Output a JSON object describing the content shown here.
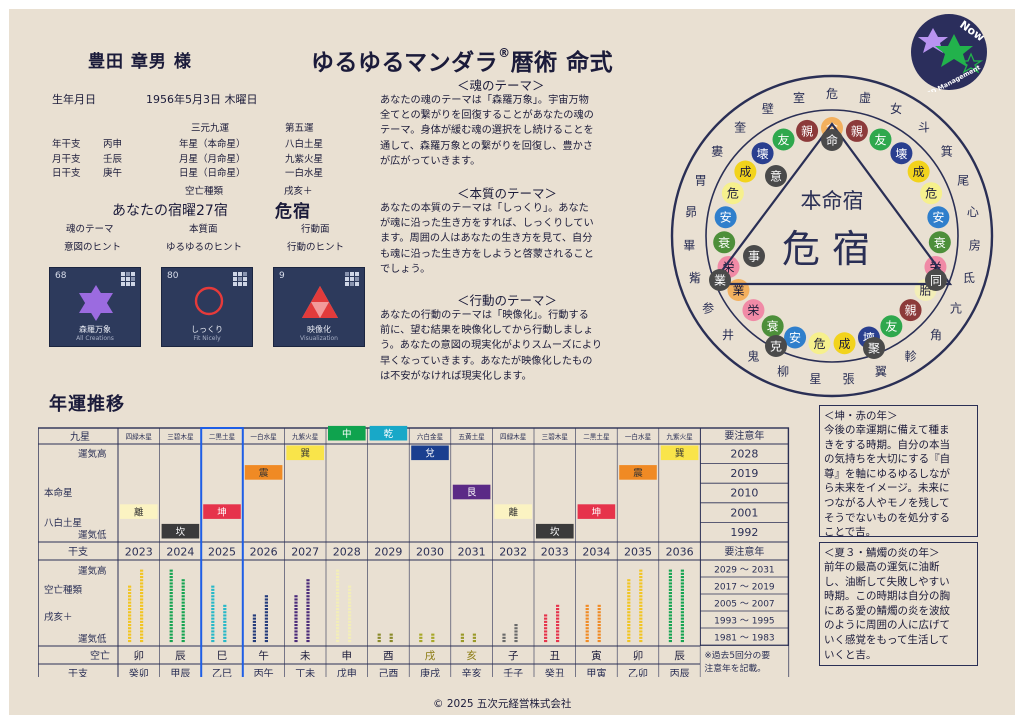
{
  "header": {
    "name": "豊田 章男 様",
    "title": "ゆるゆるマンダラ",
    "title_mark": "®",
    "title_suffix": "暦術 命式",
    "logo_text": "Now",
    "logo_sub": "5D Management"
  },
  "birth": {
    "label": "生年月日",
    "value": "1956年5月3日 木曜日"
  },
  "kanshi": {
    "rows": [
      {
        "label": "年干支",
        "value": "丙申",
        "kyusei": "年星（本命星）",
        "unsei": "八白土星"
      },
      {
        "label": "月干支",
        "value": "壬辰",
        "kyusei": "月星（月命星）",
        "unsei": "九紫火星"
      },
      {
        "label": "日干支",
        "value": "庚午",
        "kyusei": "日星（日命星）",
        "unsei": "一白水星"
      }
    ],
    "sangen_label": "三元九運",
    "daigo_label": "第五運"
  },
  "kubo": {
    "label": "空亡種類",
    "value": "戌亥＋"
  },
  "shuku": {
    "label": "あなたの宿曜27宿",
    "value": "危宿"
  },
  "themes_row": {
    "labels": [
      "魂のテーマ",
      "本質面",
      "行動面"
    ],
    "hints": [
      "意図のヒント",
      "ゆるゆるのヒント",
      "行動のヒント"
    ]
  },
  "cards": [
    {
      "num": "68",
      "name": "森羅万象",
      "en": "All Creations",
      "icon": "hexagram-icon"
    },
    {
      "num": "80",
      "name": "しっくり",
      "en": "Fit Nicely",
      "icon": "ring-icon"
    },
    {
      "num": "9",
      "name": "映像化",
      "en": "Visualization",
      "icon": "triforce-icon"
    }
  ],
  "themes": [
    {
      "heading": "＜魂のテーマ＞",
      "lines": [
        "あなたの魂のテーマは「森羅万象」。宇宙万物",
        "全てとの繋がりを回復することがあなたの魂の",
        "テーマ。身体が緩む魂の選択をし続けることを",
        "通して、森羅万象との繋がりを回復し、豊かさ",
        "が広がっていきます。"
      ]
    },
    {
      "heading": "＜本質のテーマ＞",
      "lines": [
        "あなたの本質のテーマは「しっくり」。あなた",
        "が魂に沿った生き方をすれば、しっくりしてい",
        "ます。周囲の人はあなたの生き方を見て、自分",
        "も魂に沿った生き方をしようと啓蒙されること",
        "でしょう。"
      ]
    },
    {
      "heading": "＜行動のテーマ＞",
      "lines": [
        "あなたの行動のテーマは「映像化」。行動する",
        "前に、望む結果を映像化してから行動しましょ",
        "う。あなたの意図の現実化がよりスムーズにより",
        "早くなっていきます。あなたが映像化したもの",
        "は不安がなければ現実化します。"
      ]
    }
  ],
  "mandala": {
    "center_top": "本命宿",
    "center_main": "危宿",
    "outer": [
      "危",
      "虚",
      "女",
      "斗",
      "箕",
      "尾",
      "心",
      "房",
      "氐",
      "亢",
      "角",
      "軫",
      "翼",
      "張",
      "星",
      "柳",
      "鬼",
      "井",
      "参",
      "觜",
      "畢",
      "昴",
      "胃",
      "婁",
      "奎",
      "壁",
      "室"
    ],
    "inner": [
      "命",
      "親",
      "友",
      "壊",
      "成",
      "危",
      "安",
      "衰",
      "栄",
      "胎",
      "親",
      "友",
      "壊",
      "成",
      "危",
      "安",
      "衰",
      "栄",
      "業",
      "栄",
      "衰",
      "安",
      "危",
      "成",
      "壊",
      "友",
      "親"
    ],
    "triangle": [
      "命",
      "同",
      "聚",
      "業",
      "事",
      "意",
      "克"
    ]
  },
  "section_title": "年運推移",
  "fortune": {
    "kyusei_label": "九星",
    "columns": [
      "四緑木星",
      "三碧木星",
      "二黒土星",
      "一白水星",
      "九紫火星",
      "八白土星",
      "七赤金星",
      "六白金星",
      "五黄土星",
      "四緑木星",
      "三碧木星",
      "二黒土星",
      "一白水星",
      "九紫火星"
    ],
    "years": [
      "2023",
      "2024",
      "2025",
      "2026",
      "2027",
      "2028",
      "2029",
      "2030",
      "2031",
      "2032",
      "2033",
      "2034",
      "2035",
      "2036"
    ],
    "highlight_index": 2,
    "left_labels": {
      "high": "運気高",
      "low": "運気低",
      "honmei": "本命星",
      "star": "八白土星",
      "kanshi": "干支",
      "kubo1": "空亡種類",
      "kubo2": "戌亥＋",
      "kubo": "空亡"
    },
    "markers": [
      {
        "col": 0,
        "level": 1,
        "label": "離",
        "color": "#fbf3c2",
        "text": "#333"
      },
      {
        "col": 1,
        "level": 0,
        "label": "坎",
        "color": "#3b3b3b",
        "text": "#fff"
      },
      {
        "col": 2,
        "level": 1,
        "label": "坤",
        "color": "#e6334b",
        "text": "#fff"
      },
      {
        "col": 3,
        "level": 3,
        "label": "震",
        "color": "#f08a24",
        "text": "#333"
      },
      {
        "col": 4,
        "level": 4,
        "label": "巽",
        "color": "#f9e44a",
        "text": "#333"
      },
      {
        "col": 5,
        "level": 5,
        "label": "中",
        "color": "#0fa34e",
        "text": "#fff"
      },
      {
        "col": 6,
        "level": 5,
        "label": "乾",
        "color": "#18a8c8",
        "text": "#fff"
      },
      {
        "col": 7,
        "level": 4,
        "label": "兌",
        "color": "#1a3f8f",
        "text": "#fff"
      },
      {
        "col": 8,
        "level": 2,
        "label": "艮",
        "color": "#5b2a86",
        "text": "#fff"
      },
      {
        "col": 9,
        "level": 1,
        "label": "離",
        "color": "#fbf3c2",
        "text": "#333"
      },
      {
        "col": 10,
        "level": 0,
        "label": "坎",
        "color": "#3b3b3b",
        "text": "#fff"
      },
      {
        "col": 11,
        "level": 1,
        "label": "坤",
        "color": "#e6334b",
        "text": "#fff"
      },
      {
        "col": 12,
        "level": 3,
        "label": "震",
        "color": "#f08a24",
        "text": "#333"
      },
      {
        "col": 13,
        "level": 4,
        "label": "巽",
        "color": "#f9e44a",
        "text": "#333"
      }
    ],
    "bars": [
      {
        "color": "#f2c522",
        "a": 6,
        "b": 8
      },
      {
        "color": "#16a452",
        "a": 8,
        "b": 7
      },
      {
        "color": "#27b8c8",
        "a": 6,
        "b": 4
      },
      {
        "color": "#243c7c",
        "a": 3,
        "b": 5
      },
      {
        "color": "#4a2a7a",
        "a": 5,
        "b": 7
      },
      {
        "color": "#f3eeb8",
        "a": 8,
        "b": 6
      },
      {
        "color": "#8a8a2a",
        "a": 1,
        "b": 1
      },
      {
        "color": "#a8a82a",
        "a": 1,
        "b": 1
      },
      {
        "color": "#9a9a2a",
        "a": 1,
        "b": 1
      },
      {
        "color": "#6a6a6a",
        "a": 1,
        "b": 2
      },
      {
        "color": "#e6334b",
        "a": 3,
        "b": 4
      },
      {
        "color": "#f08a24",
        "a": 4,
        "b": 4
      },
      {
        "color": "#f2c522",
        "a": 7,
        "b": 8
      },
      {
        "color": "#16a452",
        "a": 8,
        "b": 8
      }
    ],
    "kubo_row": [
      {
        "v": "卯",
        "c": "#1b1b3a"
      },
      {
        "v": "辰",
        "c": "#1b1b3a"
      },
      {
        "v": "巳",
        "c": "#1b1b3a"
      },
      {
        "v": "午",
        "c": "#1b1b3a"
      },
      {
        "v": "未",
        "c": "#1b1b3a"
      },
      {
        "v": "申",
        "c": "#1b1b3a"
      },
      {
        "v": "酉",
        "c": "#1b1b3a"
      },
      {
        "v": "戌",
        "c": "#8a7a10"
      },
      {
        "v": "亥",
        "c": "#8a7a10"
      },
      {
        "v": "子",
        "c": "#1b1b3a"
      },
      {
        "v": "丑",
        "c": "#1b1b3a"
      },
      {
        "v": "寅",
        "c": "#1b1b3a"
      },
      {
        "v": "卯",
        "c": "#1b1b3a"
      },
      {
        "v": "辰",
        "c": "#1b1b3a"
      }
    ],
    "kanshi_row": [
      "癸卯",
      "甲辰",
      "乙巳",
      "丙午",
      "丁未",
      "戊申",
      "己酉",
      "庚戌",
      "辛亥",
      "壬子",
      "癸丑",
      "甲寅",
      "乙卯",
      "丙辰"
    ],
    "caution": {
      "header": "要注意年",
      "years": [
        "2028",
        "2019",
        "2010",
        "2001",
        "1992"
      ],
      "ranges": [
        "2029 ～ 2031",
        "2017 ～ 2019",
        "2005 ～ 2007",
        "1993 ～ 1995",
        "1981 ～ 1983"
      ],
      "note1": "※過去5回分の要",
      "note2": "注意年を記載。"
    }
  },
  "side_notes": [
    {
      "heading": "＜坤・赤の年＞",
      "lines": [
        "今後の幸運期に備えて種ま",
        "きをする時期。自分の本当",
        "の気持ちを大切にする『自",
        "尊』を軸にゆるゆるしなが",
        "ら未来をイメージ。未来に",
        "つながる人やモノを残して",
        "そうでないものを処分する",
        "ことで吉。"
      ]
    },
    {
      "heading": "＜夏３・鯖燭の炎の年＞",
      "lines": [
        "前年の最高の運気に油断",
        "し、油断して失敗しやすい",
        "時期。この時期は自分の胸",
        "にある愛の鯖燭の炎を波紋",
        "のように周囲の人に広げて",
        "いく感覚をもって生活して",
        "いくと吉。"
      ]
    }
  ],
  "footer": "© 2025 五次元経営株式会社",
  "colors": {
    "background": "#e9e0d2",
    "ink": "#1b1b3a",
    "highlight": "#1e5ee6",
    "mandala_ink": "#2a2f55"
  }
}
